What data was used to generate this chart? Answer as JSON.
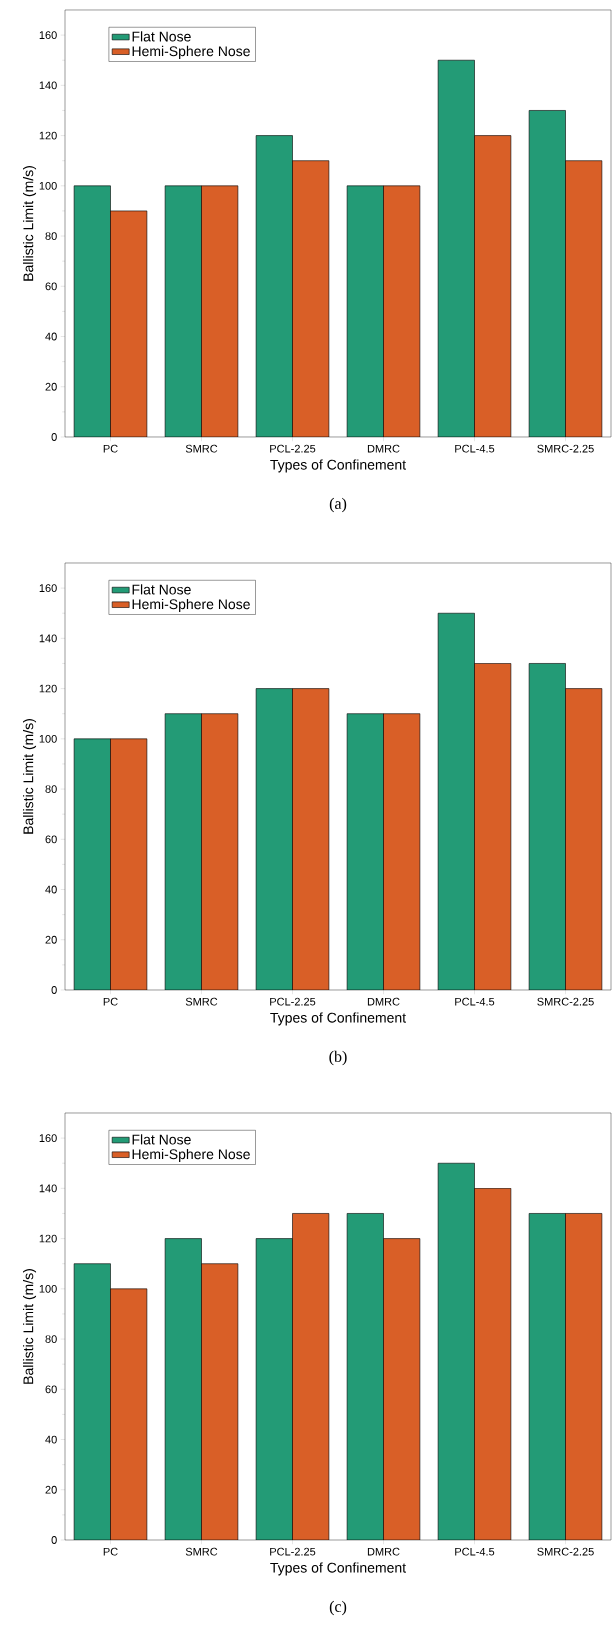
{
  "chart_data": [
    {
      "type": "bar",
      "categories": [
        "PC",
        "SMRC",
        "PCL-2.25",
        "DMRC",
        "PCL-4.5",
        "SMRC-2.25"
      ],
      "xlabel": "Types of Confinement",
      "ylabel": "Ballistic Limit (m/s)",
      "ylim": [
        0,
        170
      ],
      "yticks": [
        0,
        20,
        40,
        60,
        80,
        100,
        120,
        140,
        160
      ],
      "legend": "top left",
      "annotations": [
        "(a)"
      ],
      "series": [
        {
          "name": "Flat Nose",
          "color": "#239b76",
          "values": [
            100,
            100,
            120,
            100,
            150,
            130
          ]
        },
        {
          "name": "Hemi-Sphere Nose",
          "color": "#d95f27",
          "values": [
            90,
            100,
            110,
            100,
            120,
            110
          ]
        }
      ]
    },
    {
      "type": "bar",
      "categories": [
        "PC",
        "SMRC",
        "PCL-2.25",
        "DMRC",
        "PCL-4.5",
        "SMRC-2.25"
      ],
      "xlabel": "Types of Confinement",
      "ylabel": "Ballistic Limit (m/s)",
      "ylim": [
        0,
        170
      ],
      "yticks": [
        0,
        20,
        40,
        60,
        80,
        100,
        120,
        140,
        160
      ],
      "legend": "top left",
      "annotations": [
        "(b)"
      ],
      "series": [
        {
          "name": "Flat Nose",
          "color": "#239b76",
          "values": [
            100,
            110,
            120,
            110,
            150,
            130
          ]
        },
        {
          "name": "Hemi-Sphere Nose",
          "color": "#d95f27",
          "values": [
            100,
            110,
            120,
            110,
            130,
            120
          ]
        }
      ]
    },
    {
      "type": "bar",
      "categories": [
        "PC",
        "SMRC",
        "PCL-2.25",
        "DMRC",
        "PCL-4.5",
        "SMRC-2.25"
      ],
      "xlabel": "Types of Confinement",
      "ylabel": "Ballistic Limit (m/s)",
      "ylim": [
        0,
        170
      ],
      "yticks": [
        0,
        20,
        40,
        60,
        80,
        100,
        120,
        140,
        160
      ],
      "legend": "top left",
      "annotations": [
        "(c)"
      ],
      "series": [
        {
          "name": "Flat Nose",
          "color": "#239b76",
          "values": [
            110,
            120,
            120,
            130,
            150,
            130
          ]
        },
        {
          "name": "Hemi-Sphere Nose",
          "color": "#d95f27",
          "values": [
            100,
            110,
            130,
            120,
            140,
            130
          ]
        }
      ]
    }
  ]
}
